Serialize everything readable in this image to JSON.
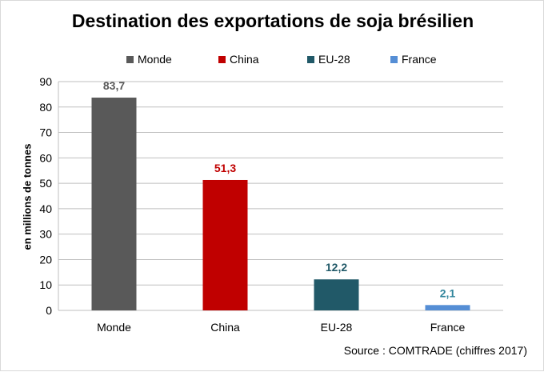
{
  "chart_data": {
    "type": "bar",
    "title": "Destination des exportations de soja brésilien",
    "ylabel": "en millions de tonnes",
    "xlabel": "",
    "categories": [
      "Monde",
      "China",
      "EU-28",
      "France"
    ],
    "values": [
      83.7,
      51.3,
      12.2,
      2.1
    ],
    "value_labels": [
      "83,7",
      "51,3",
      "12,2",
      "2,1"
    ],
    "colors": [
      "#595959",
      "#c00000",
      "#215968",
      "#558ed5"
    ],
    "label_colors": [
      "#595959",
      "#c00000",
      "#215968",
      "#31859c"
    ],
    "legend": [
      "Monde",
      "China",
      "EU-28",
      "France"
    ],
    "legend_position": "top",
    "ylim": [
      0,
      90
    ],
    "yticks": [
      0,
      10,
      20,
      30,
      40,
      50,
      60,
      70,
      80,
      90
    ],
    "grid": true
  },
  "source": "Source : COMTRADE (chiffres 2017)"
}
